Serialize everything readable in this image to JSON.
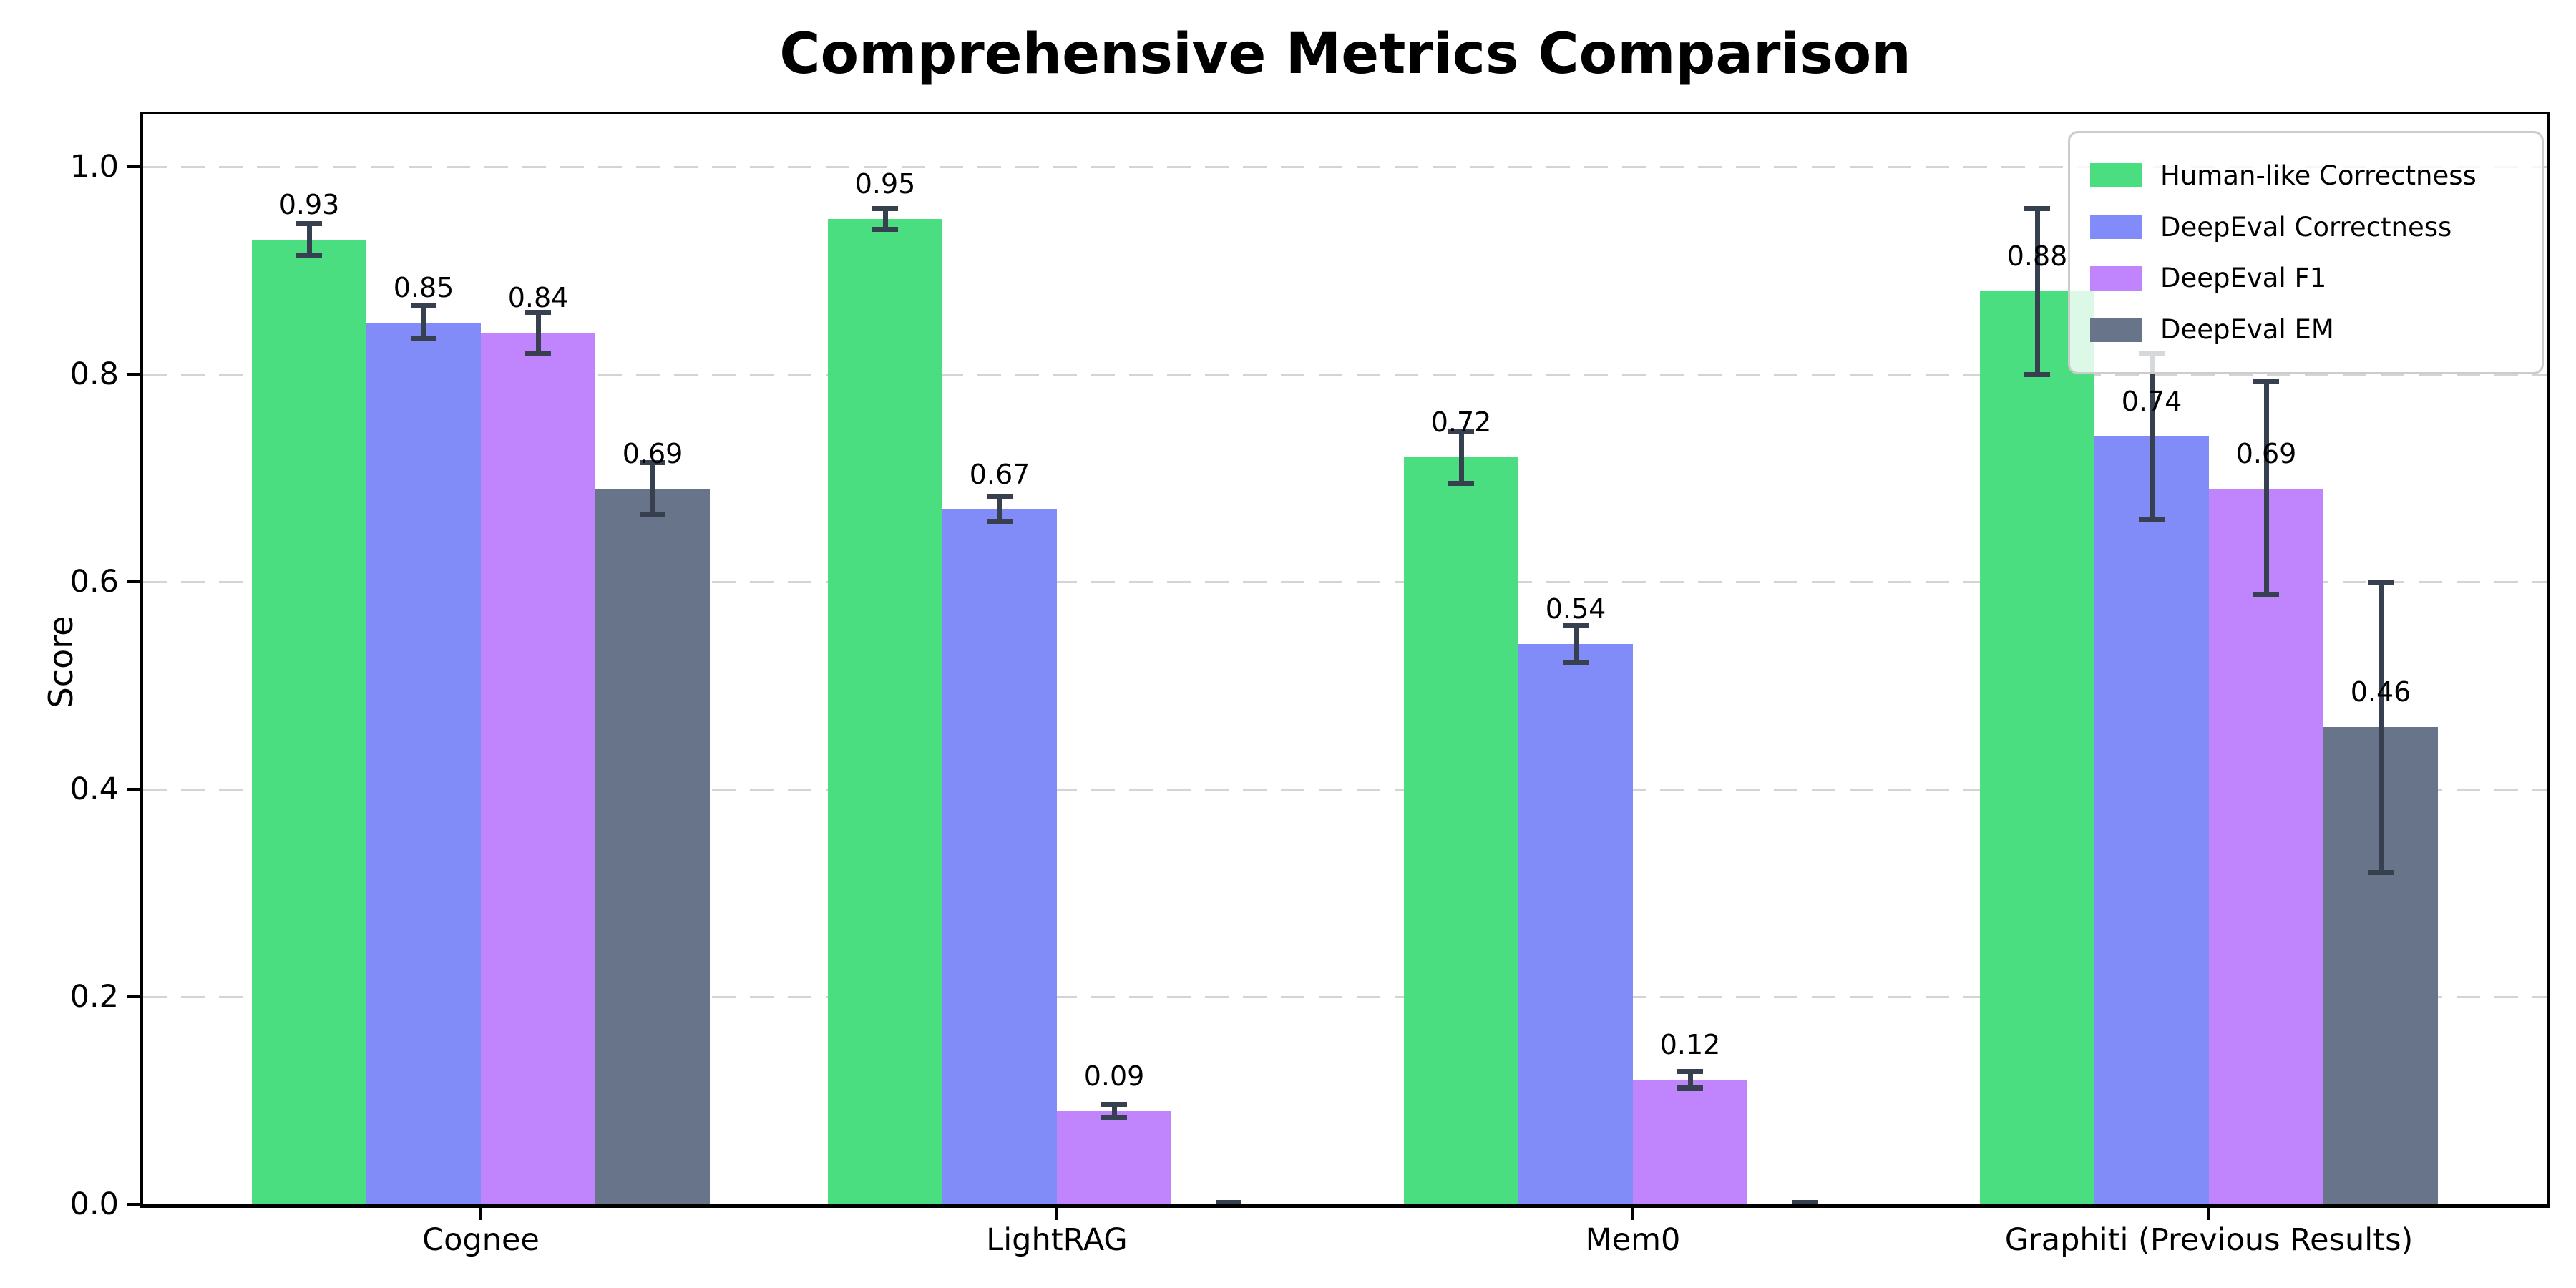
{
  "title": "Comprehensive Metrics Comparison",
  "chart_data": {
    "type": "bar",
    "title": "Comprehensive Metrics Comparison",
    "xlabel": "",
    "ylabel": "Score",
    "categories": [
      "Cognee",
      "LightRAG",
      "Mem0",
      "Graphiti (Previous Results)"
    ],
    "series": [
      {
        "name": "Human-like Correctness",
        "color": "#4ade80",
        "values": [
          0.93,
          0.95,
          0.72,
          0.88
        ],
        "errors": [
          0.015,
          0.01,
          0.025,
          0.08
        ],
        "labels": [
          "0.93",
          "0.95",
          "0.72",
          "0.88"
        ]
      },
      {
        "name": "DeepEval Correctness",
        "color": "#818cf8",
        "values": [
          0.85,
          0.67,
          0.54,
          0.74
        ],
        "errors": [
          0.016,
          0.012,
          0.018,
          0.08
        ],
        "labels": [
          "0.85",
          "0.67",
          "0.54",
          "0.74"
        ]
      },
      {
        "name": "DeepEval F1",
        "color": "#c084fc",
        "values": [
          0.84,
          0.09,
          0.12,
          0.69
        ],
        "errors": [
          0.02,
          0.006,
          0.008,
          0.103
        ],
        "labels": [
          "0.84",
          "0.09",
          "0.12",
          "0.69"
        ]
      },
      {
        "name": "DeepEval EM",
        "color": "#68748a",
        "values": [
          0.69,
          0.0,
          0.0,
          0.46
        ],
        "errors": [
          0.025,
          0.002,
          0.002,
          0.14
        ],
        "labels": [
          "0.69",
          null,
          null,
          "0.46"
        ]
      }
    ],
    "y_ticks": [
      0.0,
      0.2,
      0.4,
      0.6,
      0.8,
      1.0
    ],
    "y_tick_labels": [
      "0.0",
      "0.2",
      "0.4",
      "0.6",
      "0.8",
      "1.0"
    ],
    "ylim": [
      0,
      1.05
    ],
    "grid": "horizontal-dashed",
    "legend_position": "upper-right",
    "error_bars": true
  },
  "style": {
    "error_bar_color": "#36404f",
    "grid_color": "#d4d4d4",
    "spine_color": "#000000",
    "text_color": "#000000",
    "legend_border_color": "#cccccc",
    "legend_background": "rgba(255,255,255,0.8)",
    "background": "#ffffff"
  }
}
